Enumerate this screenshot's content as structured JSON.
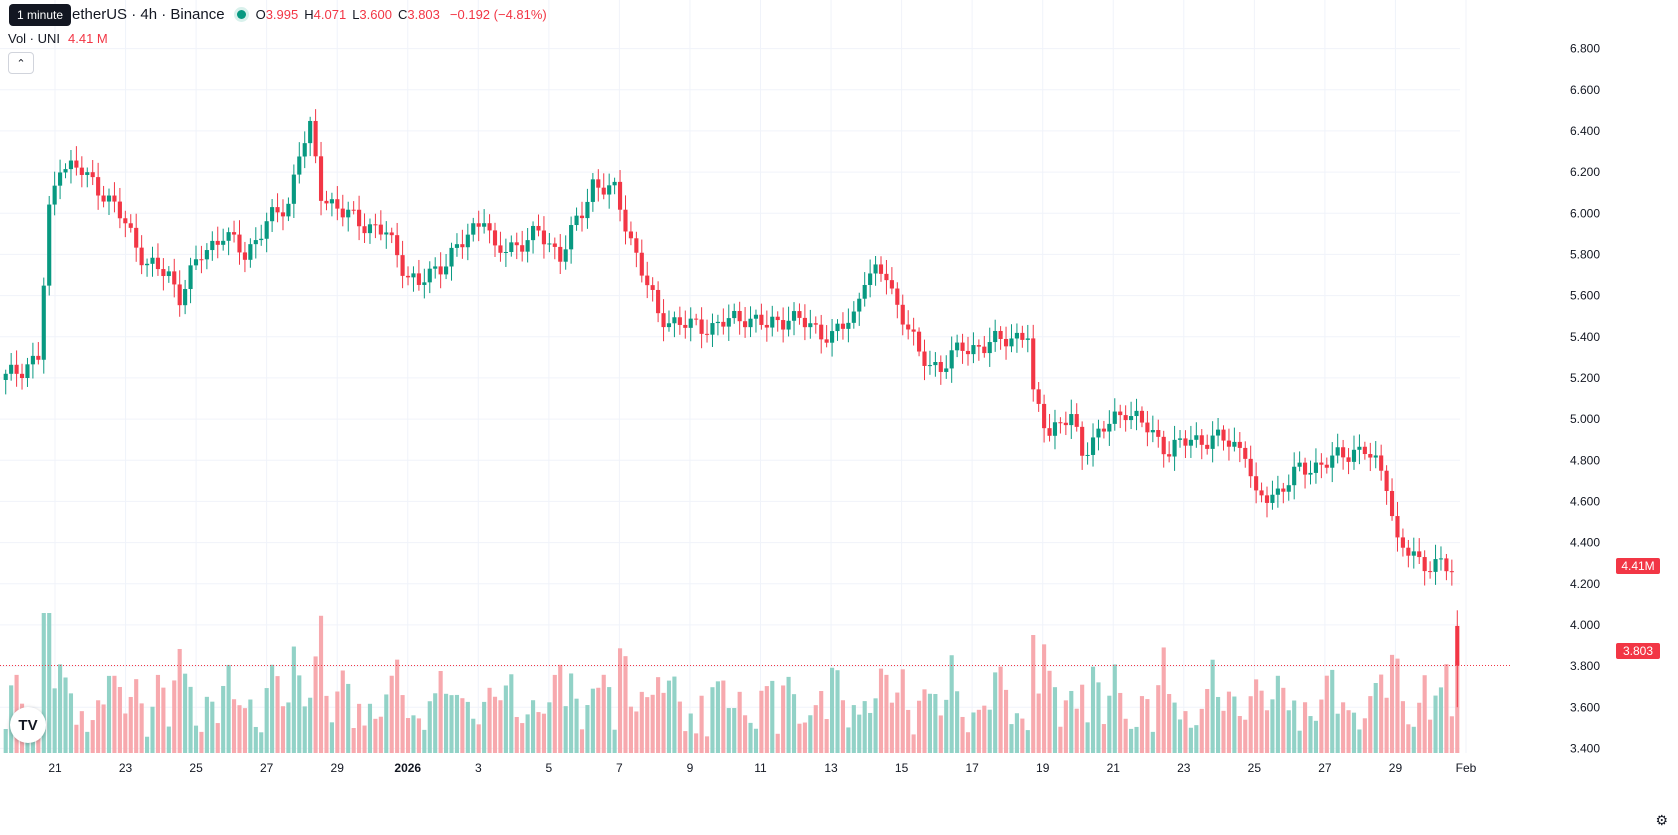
{
  "header": {
    "symbol": "etherUS · 4h · Binance",
    "ohlc": {
      "o_key": "O",
      "o_val": "3.995",
      "h_key": "H",
      "h_val": "4.071",
      "l_key": "L",
      "l_val": "3.600",
      "c_key": "C",
      "c_val": "3.803",
      "change": "−0.192 (−4.81%)"
    },
    "tooltip": "1 minute",
    "volume_label": "Vol · UNI",
    "volume_value": "4.41 M",
    "collapse_icon": "chevron-up-icon"
  },
  "price_tags": {
    "last_price": "3.803",
    "last_volume": "4.41M"
  },
  "logo_text": "TV",
  "colors": {
    "up": "#089981",
    "down": "#f23645",
    "up_volume": "#92d2c7",
    "down_volume": "#f7a9ae"
  },
  "chart_data": {
    "type": "candlestick",
    "interval": "4h",
    "y_axis": {
      "min": 3.3,
      "max": 6.9,
      "ticks": [
        "6.800",
        "6.600",
        "6.400",
        "6.200",
        "6.000",
        "5.800",
        "5.600",
        "5.400",
        "5.200",
        "5.000",
        "4.800",
        "4.600",
        "4.400",
        "4.200",
        "4.000",
        "3.800",
        "3.600",
        "3.400"
      ]
    },
    "x_axis": {
      "labels": [
        "21",
        "23",
        "25",
        "27",
        "29",
        "2026",
        "3",
        "5",
        "7",
        "9",
        "11",
        "13",
        "15",
        "17",
        "19",
        "21",
        "23",
        "25",
        "27",
        "29",
        "Feb"
      ],
      "bold_labels": [
        "2026"
      ]
    },
    "grid": true,
    "close_waypoints": [
      [
        0,
        5.2
      ],
      [
        6,
        5.3
      ],
      [
        8,
        6.0
      ],
      [
        10,
        6.25
      ],
      [
        14,
        6.2
      ],
      [
        18,
        6.1
      ],
      [
        22,
        5.95
      ],
      [
        26,
        5.75
      ],
      [
        30,
        5.7
      ],
      [
        32,
        5.6
      ],
      [
        36,
        5.8
      ],
      [
        40,
        5.9
      ],
      [
        44,
        5.8
      ],
      [
        48,
        5.95
      ],
      [
        52,
        6.05
      ],
      [
        54,
        6.3
      ],
      [
        56,
        6.4
      ],
      [
        58,
        6.1
      ],
      [
        62,
        6.0
      ],
      [
        66,
        5.95
      ],
      [
        70,
        5.9
      ],
      [
        74,
        5.7
      ],
      [
        76,
        5.65
      ],
      [
        80,
        5.75
      ],
      [
        84,
        5.85
      ],
      [
        88,
        6.0
      ],
      [
        90,
        5.8
      ],
      [
        94,
        5.85
      ],
      [
        98,
        5.9
      ],
      [
        102,
        5.8
      ],
      [
        106,
        6.0
      ],
      [
        108,
        6.15
      ],
      [
        112,
        6.1
      ],
      [
        114,
        5.95
      ],
      [
        116,
        5.8
      ],
      [
        118,
        5.65
      ],
      [
        120,
        5.5
      ],
      [
        126,
        5.45
      ],
      [
        130,
        5.45
      ],
      [
        136,
        5.5
      ],
      [
        140,
        5.45
      ],
      [
        144,
        5.5
      ],
      [
        148,
        5.45
      ],
      [
        152,
        5.4
      ],
      [
        156,
        5.5
      ],
      [
        158,
        5.7
      ],
      [
        162,
        5.7
      ],
      [
        164,
        5.55
      ],
      [
        166,
        5.45
      ],
      [
        168,
        5.3
      ],
      [
        172,
        5.25
      ],
      [
        174,
        5.3
      ],
      [
        176,
        5.35
      ],
      [
        180,
        5.35
      ],
      [
        184,
        5.4
      ],
      [
        188,
        5.4
      ],
      [
        189,
        5.1
      ],
      [
        192,
        4.95
      ],
      [
        196,
        5.0
      ],
      [
        198,
        4.85
      ],
      [
        202,
        4.95
      ],
      [
        206,
        5.05
      ],
      [
        210,
        4.95
      ],
      [
        214,
        4.85
      ],
      [
        218,
        4.9
      ],
      [
        224,
        4.9
      ],
      [
        228,
        4.85
      ],
      [
        230,
        4.6
      ],
      [
        234,
        4.65
      ],
      [
        238,
        4.75
      ],
      [
        244,
        4.8
      ],
      [
        248,
        4.85
      ],
      [
        250,
        4.85
      ],
      [
        254,
        4.7
      ],
      [
        256,
        4.4
      ],
      [
        260,
        4.3
      ],
      [
        264,
        4.3
      ],
      [
        266,
        4.25
      ],
      [
        267,
        3.8
      ]
    ],
    "last_candle": {
      "open": 3.995,
      "high": 4.071,
      "low": 3.6,
      "close": 3.803
    },
    "volume_axis_max": 4.41
  }
}
